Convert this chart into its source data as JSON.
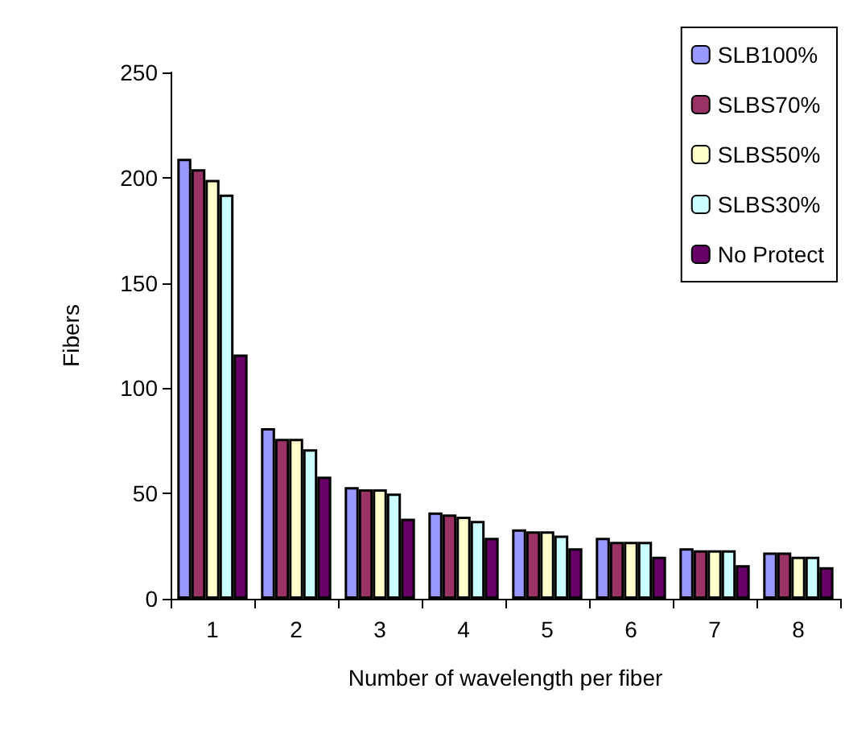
{
  "chart_data": {
    "type": "bar",
    "xlabel": "Number of wavelength per fiber",
    "ylabel": "Fibers",
    "categories": [
      "1",
      "2",
      "3",
      "4",
      "5",
      "6",
      "7",
      "8"
    ],
    "series": [
      {
        "name": "SLB100%",
        "color": "#9999ff",
        "values": [
          209,
          81,
          53,
          41,
          33,
          29,
          24,
          22
        ]
      },
      {
        "name": "SLBS70%",
        "color": "#993366",
        "values": [
          204,
          76,
          52,
          40,
          32,
          27,
          23,
          22
        ]
      },
      {
        "name": "SLBS50%",
        "color": "#ffffcc",
        "values": [
          199,
          76,
          52,
          39,
          32,
          27,
          23,
          20
        ]
      },
      {
        "name": "SLBS30%",
        "color": "#ccffff",
        "values": [
          192,
          71,
          50,
          37,
          30,
          27,
          23,
          20
        ]
      },
      {
        "name": "No Protect",
        "color": "#660066",
        "values": [
          116,
          58,
          38,
          29,
          24,
          20,
          16,
          15
        ]
      }
    ],
    "ylim": [
      0,
      250
    ],
    "yticks": [
      0,
      50,
      100,
      150,
      200,
      250
    ],
    "grid": false,
    "legend": "top right"
  }
}
